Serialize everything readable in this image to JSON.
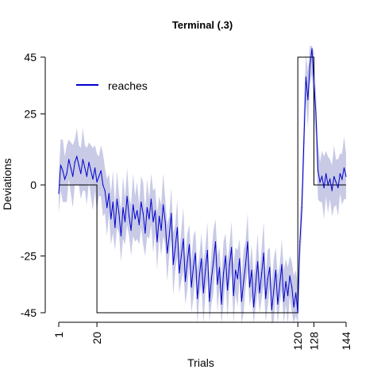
{
  "chart_data": {
    "type": "line",
    "title": "Terminal (.3)",
    "xlabel": "Trials",
    "ylabel": "Deviations",
    "xlim": [
      1,
      144
    ],
    "ylim": [
      -45,
      45
    ],
    "x_ticks": [
      1,
      20,
      120,
      128,
      144
    ],
    "y_ticks": [
      45,
      25,
      0,
      -25,
      -45
    ],
    "grid": false,
    "legend_position": "top-left",
    "colors": {
      "reaches": "#0000CC",
      "band": "#C8CAE6",
      "perturbation": "#000000"
    },
    "perturbation": {
      "x": [
        1,
        20,
        20,
        120,
        120,
        128,
        128,
        144
      ],
      "y": [
        0,
        0,
        -45,
        -45,
        45,
        45,
        0,
        0
      ]
    },
    "series": [
      {
        "name": "reaches",
        "x": [
          1,
          2,
          3,
          4,
          5,
          6,
          7,
          8,
          9,
          10,
          11,
          12,
          13,
          14,
          15,
          16,
          17,
          18,
          19,
          20,
          21,
          22,
          23,
          24,
          25,
          26,
          27,
          28,
          29,
          30,
          31,
          32,
          33,
          34,
          35,
          36,
          37,
          38,
          39,
          40,
          41,
          42,
          43,
          44,
          45,
          46,
          47,
          48,
          49,
          50,
          51,
          52,
          53,
          54,
          55,
          56,
          57,
          58,
          59,
          60,
          61,
          62,
          63,
          64,
          65,
          66,
          67,
          68,
          69,
          70,
          71,
          72,
          73,
          74,
          75,
          76,
          77,
          78,
          79,
          80,
          81,
          82,
          83,
          84,
          85,
          86,
          87,
          88,
          89,
          90,
          91,
          92,
          93,
          94,
          95,
          96,
          97,
          98,
          99,
          100,
          101,
          102,
          103,
          104,
          105,
          106,
          107,
          108,
          109,
          110,
          111,
          112,
          113,
          114,
          115,
          116,
          117,
          118,
          119,
          120,
          121,
          122,
          123,
          124,
          125,
          126,
          127,
          128,
          129,
          130,
          131,
          132,
          133,
          134,
          135,
          136,
          137,
          138,
          139,
          140,
          141,
          142,
          143,
          144
        ],
        "y": [
          -3,
          7,
          5,
          2,
          4,
          9,
          6,
          3,
          8,
          10,
          7,
          4,
          9,
          6,
          3,
          8,
          5,
          2,
          6,
          1,
          3,
          5,
          0,
          -2,
          -8,
          -3,
          -12,
          -6,
          -15,
          -5,
          -10,
          -18,
          -8,
          -13,
          -4,
          -11,
          -16,
          -7,
          -12,
          -9,
          -14,
          -6,
          -10,
          -17,
          -8,
          -12,
          -5,
          -13,
          -9,
          -20,
          -11,
          -16,
          -7,
          -13,
          -24,
          -18,
          -10,
          -28,
          -22,
          -15,
          -31,
          -25,
          -19,
          -34,
          -27,
          -21,
          -36,
          -29,
          -24,
          -40,
          -32,
          -26,
          -38,
          -30,
          -23,
          -41,
          -33,
          -27,
          -20,
          -35,
          -29,
          -42,
          -31,
          -25,
          -37,
          -28,
          -22,
          -39,
          -30,
          -33,
          -26,
          -41,
          -34,
          -28,
          -20,
          -36,
          -30,
          -43,
          -35,
          -27,
          -38,
          -31,
          -24,
          -40,
          -33,
          -29,
          -44,
          -37,
          -30,
          -42,
          -35,
          -28,
          -41,
          -34,
          -39,
          -32,
          -36,
          -43,
          -38,
          -45,
          -20,
          -8,
          15,
          38,
          30,
          42,
          48,
          36,
          25,
          5,
          1,
          3,
          -1,
          4,
          0,
          2,
          -2,
          3,
          1,
          -1,
          4,
          2,
          6,
          3
        ]
      }
    ]
  }
}
